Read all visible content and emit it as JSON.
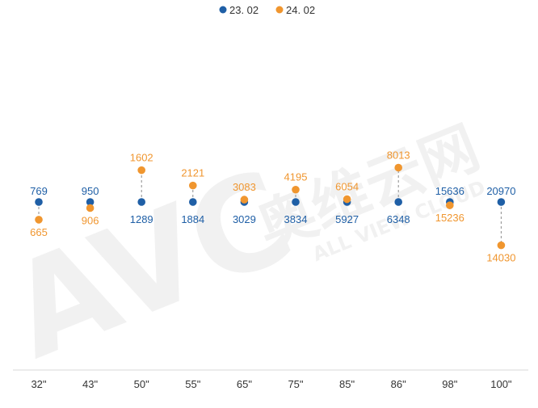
{
  "chart_data": {
    "type": "scatter",
    "categories": [
      "32\"",
      "43\"",
      "50\"",
      "55\"",
      "65\"",
      "75\"",
      "85\"",
      "86\"",
      "98\"",
      "100\""
    ],
    "series": [
      {
        "name": "23. 02",
        "color": "#1f5fa6",
        "values": [
          769,
          950,
          1289,
          1884,
          3029,
          3834,
          5927,
          6348,
          15636,
          20970
        ]
      },
      {
        "name": "24. 02",
        "color": "#f0962f",
        "values": [
          665,
          906,
          1602,
          2121,
          3083,
          4195,
          6054,
          8013,
          15236,
          14030
        ]
      }
    ],
    "connector_style": "dashed vertical line between series values",
    "legend_position": "top-center",
    "grid": false,
    "value_scale": "each category scaled independently; 23. 02 values drawn on a common baseline",
    "watermark": {
      "logo": "AVC",
      "cn": "奥维云网",
      "en": "ALL VIEW CLOUD"
    }
  }
}
